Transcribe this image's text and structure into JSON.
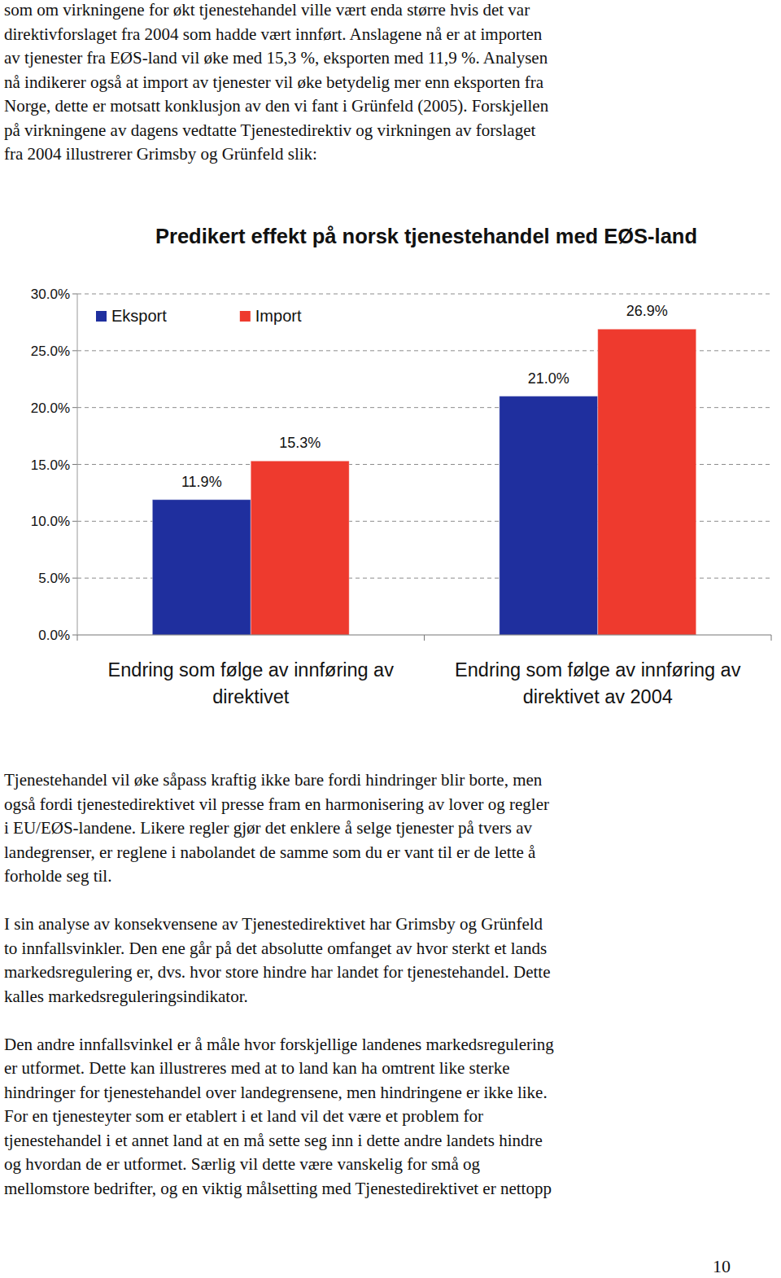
{
  "text_top": {
    "lines": [
      "som om virkningene for økt tjenestehandel ville vært enda større hvis det var",
      "direktivforslaget fra 2004 som hadde vært innført. Anslagene nå er at importen",
      "av tjenester fra EØS-land vil øke med 15,3 %, eksporten med 11,9 %. Analysen",
      "nå indikerer også at import av tjenester vil øke betydelig mer enn eksporten fra",
      "Norge, dette er motsatt konklusjon av den vi fant i Grünfeld (2005). Forskjellen",
      "på virkningene av dagens vedtatte Tjenestedirektiv og virkningen av forslaget",
      "fra 2004 illustrerer Grimsby og Grünfeld slik:"
    ]
  },
  "chart_data": {
    "type": "bar",
    "title": "Predikert effekt på norsk tjenestehandel med EØS-land",
    "categories": [
      "Endring som følge av innføring av direktivet",
      "Endring som følge av innføring av direktivet av 2004"
    ],
    "series": [
      {
        "name": "Eksport",
        "color": "#1f2f9e",
        "values": [
          11.9,
          21.0
        ],
        "value_labels": [
          "11.9%",
          "21.0%"
        ]
      },
      {
        "name": "Import",
        "color": "#ee3a2e",
        "values": [
          15.3,
          26.9
        ],
        "value_labels": [
          "15.3%",
          "26.9%"
        ]
      }
    ],
    "ylim": [
      0,
      30
    ],
    "yticks": [
      {
        "value": 0,
        "label": "0.0%"
      },
      {
        "value": 5,
        "label": "5.0%"
      },
      {
        "value": 10,
        "label": "10.0%"
      },
      {
        "value": 15,
        "label": "15.0%"
      },
      {
        "value": 20,
        "label": "20.0%"
      },
      {
        "value": 25,
        "label": "25.0%"
      },
      {
        "value": 30,
        "label": "30.0%"
      }
    ],
    "grid": true,
    "legend": "top-left",
    "data_labels": true
  },
  "text_bottom": {
    "paragraphs": [
      {
        "lines": [
          "Tjenestehandel vil øke såpass kraftig  ikke bare fordi hindringer blir borte, men",
          "også fordi tjenestedirektivet vil presse fram en harmonisering av lover og regler",
          "i EU/EØS-landene. Likere regler gjør det enklere å selge tjenester på tvers av",
          "landegrenser, er reglene i nabolandet de samme som du er vant til er de lette å",
          "forholde seg til."
        ]
      },
      {
        "lines": [
          "I sin analyse av konsekvensene av Tjenestedirektivet har Grimsby og Grünfeld",
          "to innfallsvinkler. Den ene går på det absolutte omfanget av hvor sterkt et lands",
          "markedsregulering er, dvs. hvor store hindre har landet for tjenestehandel. Dette",
          "kalles markedsreguleringsindikator."
        ]
      },
      {
        "lines": [
          "Den andre innfallsvinkel er å måle hvor forskjellige landenes markedsregulering",
          "er utformet. Dette kan illustreres med at to land kan ha omtrent like sterke",
          "hindringer for tjenestehandel over landegrensene, men hindringene er ikke like.",
          "For en tjenesteyter som er etablert i et land vil det være et problem for",
          "tjenestehandel i et annet land at en må sette seg inn i dette andre landets hindre",
          "og hvordan de er utformet. Særlig vil dette være vanskelig for små og",
          "mellomstore bedrifter, og en viktig målsetting med Tjenestedirektivet er nettopp"
        ]
      }
    ]
  },
  "page_number": "10"
}
